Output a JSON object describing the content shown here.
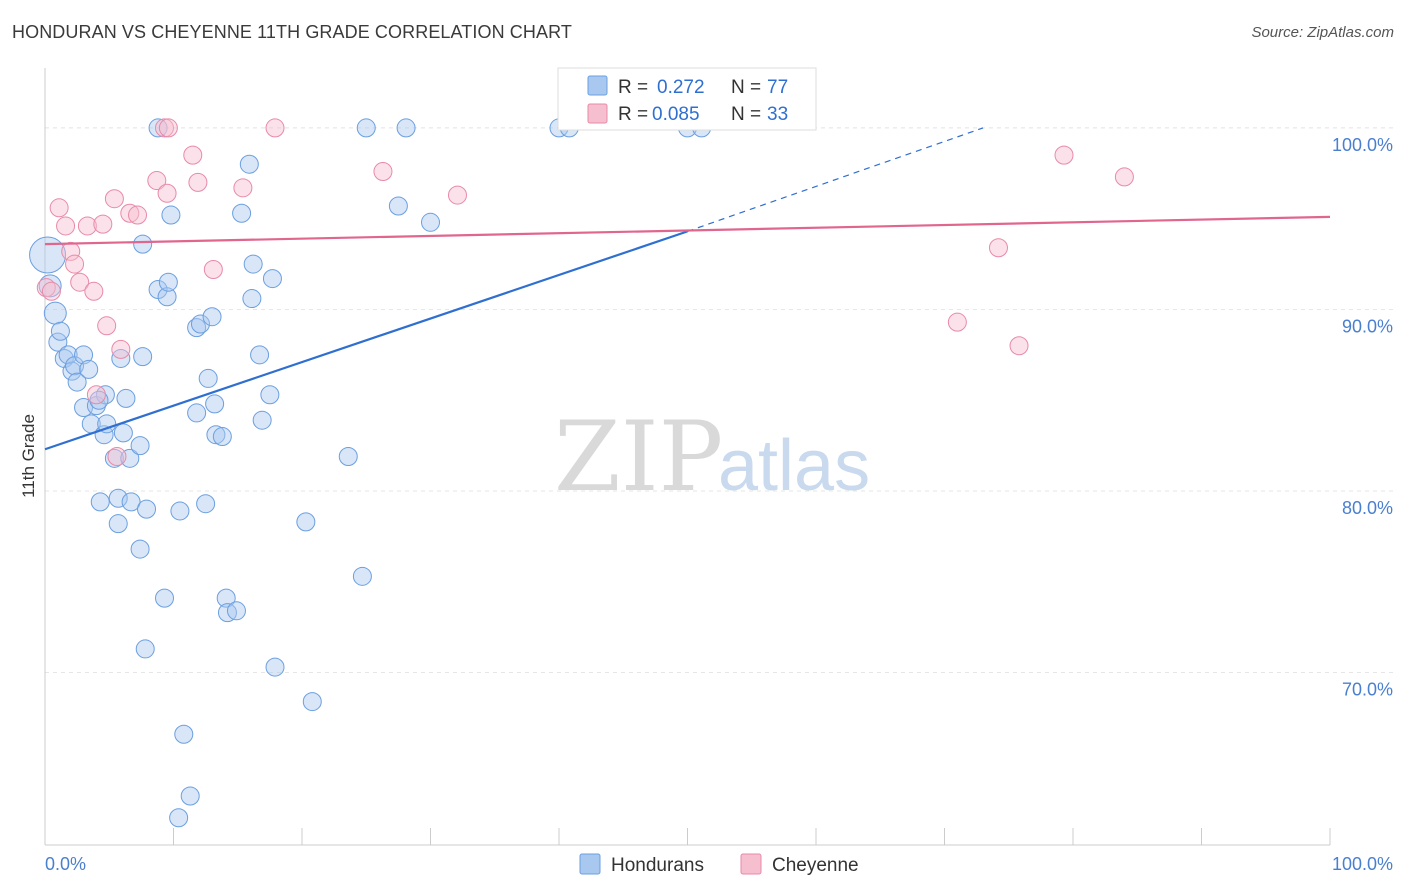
{
  "header": {
    "title": "HONDURAN VS CHEYENNE 11TH GRADE CORRELATION CHART",
    "source": "Source: ZipAtlas.com"
  },
  "watermark": {
    "zip": "ZIP",
    "atlas": "atlas"
  },
  "legend_box": {
    "rows": [
      {
        "r_label": "R =",
        "r_value": "0.272",
        "n_label": "N =",
        "n_value": "77",
        "color": "#a9c8f0",
        "stroke": "#6b9fe0"
      },
      {
        "r_label": "R =",
        "r_value": "0.085",
        "n_label": "N =",
        "n_value": "33",
        "color": "#f6bfd0",
        "stroke": "#e88aa8"
      }
    ]
  },
  "bottom_legend": [
    {
      "label": "Hondurans",
      "color": "#a9c8f0",
      "stroke": "#6b9fe0"
    },
    {
      "label": "Cheyenne",
      "color": "#f6bfd0",
      "stroke": "#e88aa8"
    }
  ],
  "chart_data": {
    "type": "scatter",
    "title": "HONDURAN VS CHEYENNE 11TH GRADE CORRELATION CHART",
    "xlabel": "",
    "ylabel": "11th Grade",
    "xlim": [
      0,
      100
    ],
    "ylim": [
      60.5,
      103.3
    ],
    "x_tick_labels": [
      "0.0%",
      "100.0%"
    ],
    "y_ticks": [
      70,
      80,
      90,
      100
    ],
    "y_tick_labels": [
      "70.0%",
      "80.0%",
      "90.0%",
      "100.0%"
    ],
    "grid": true,
    "series": [
      {
        "name": "Hondurans",
        "color": "#6b9fe0",
        "fill": "#a9c8f0",
        "r": 0.272,
        "n": 77,
        "trend": {
          "x0": 0,
          "y0": 82.3,
          "x1": 50,
          "y1": 94.3,
          "dashed_to_x": 73,
          "dashed_to_y": 100.0
        },
        "points": [
          [
            0.2,
            93.0
          ],
          [
            0.4,
            91.3
          ],
          [
            0.8,
            89.8
          ],
          [
            1.0,
            88.2
          ],
          [
            1.2,
            88.8
          ],
          [
            1.5,
            87.3
          ],
          [
            1.8,
            87.5
          ],
          [
            2.1,
            86.6
          ],
          [
            2.3,
            86.9
          ],
          [
            2.5,
            86.0
          ],
          [
            3.0,
            87.5
          ],
          [
            3.4,
            86.7
          ],
          [
            3.0,
            84.6
          ],
          [
            4.0,
            84.7
          ],
          [
            3.6,
            83.7
          ],
          [
            4.7,
            85.3
          ],
          [
            4.2,
            85.0
          ],
          [
            4.6,
            83.1
          ],
          [
            4.8,
            83.7
          ],
          [
            5.4,
            81.8
          ],
          [
            6.1,
            83.2
          ],
          [
            6.6,
            81.8
          ],
          [
            6.3,
            85.1
          ],
          [
            5.9,
            87.3
          ],
          [
            7.4,
            82.5
          ],
          [
            7.6,
            87.4
          ],
          [
            8.8,
            91.1
          ],
          [
            9.5,
            90.7
          ],
          [
            9.6,
            91.5
          ],
          [
            8.8,
            100.0
          ],
          [
            9.8,
            95.2
          ],
          [
            7.6,
            93.6
          ],
          [
            4.3,
            79.4
          ],
          [
            5.7,
            79.6
          ],
          [
            5.7,
            78.2
          ],
          [
            6.7,
            79.4
          ],
          [
            7.9,
            79.0
          ],
          [
            10.5,
            78.9
          ],
          [
            12.5,
            79.3
          ],
          [
            7.4,
            76.8
          ],
          [
            9.3,
            74.1
          ],
          [
            7.8,
            71.3
          ],
          [
            10.8,
            66.6
          ],
          [
            11.3,
            63.2
          ],
          [
            10.4,
            62.0
          ],
          [
            11.8,
            89.0
          ],
          [
            12.1,
            89.2
          ],
          [
            13.0,
            89.6
          ],
          [
            12.7,
            86.2
          ],
          [
            11.8,
            84.3
          ],
          [
            13.2,
            84.8
          ],
          [
            13.3,
            83.1
          ],
          [
            13.8,
            83.0
          ],
          [
            14.1,
            74.1
          ],
          [
            14.2,
            73.3
          ],
          [
            14.9,
            73.4
          ],
          [
            15.3,
            95.3
          ],
          [
            15.9,
            98.0
          ],
          [
            16.2,
            92.5
          ],
          [
            16.1,
            90.6
          ],
          [
            16.7,
            87.5
          ],
          [
            16.9,
            83.9
          ],
          [
            17.5,
            85.3
          ],
          [
            17.7,
            91.7
          ],
          [
            17.9,
            70.3
          ],
          [
            20.3,
            78.3
          ],
          [
            20.8,
            68.4
          ],
          [
            23.6,
            81.9
          ],
          [
            24.7,
            75.3
          ],
          [
            25.0,
            100.0
          ],
          [
            27.5,
            95.7
          ],
          [
            28.1,
            100.0
          ],
          [
            30.0,
            94.8
          ],
          [
            40.0,
            100.0
          ],
          [
            40.8,
            100.0
          ],
          [
            50.0,
            100.0
          ],
          [
            51.1,
            100.0
          ]
        ]
      },
      {
        "name": "Cheyenne",
        "color": "#e88aa8",
        "fill": "#f6bfd0",
        "r": 0.085,
        "n": 33,
        "trend": {
          "x0": 0,
          "y0": 93.6,
          "x1": 100,
          "y1": 95.1
        },
        "points": [
          [
            0.1,
            91.2
          ],
          [
            0.5,
            91.0
          ],
          [
            1.1,
            95.6
          ],
          [
            1.6,
            94.6
          ],
          [
            2.0,
            93.2
          ],
          [
            2.3,
            92.5
          ],
          [
            2.7,
            91.5
          ],
          [
            3.3,
            94.6
          ],
          [
            3.8,
            91.0
          ],
          [
            4.5,
            94.7
          ],
          [
            4.8,
            89.1
          ],
          [
            5.4,
            96.1
          ],
          [
            5.9,
            87.8
          ],
          [
            6.6,
            95.3
          ],
          [
            7.2,
            95.2
          ],
          [
            8.7,
            97.1
          ],
          [
            9.3,
            100.0
          ],
          [
            9.6,
            100.0
          ],
          [
            9.5,
            96.4
          ],
          [
            11.5,
            98.5
          ],
          [
            11.9,
            97.0
          ],
          [
            13.1,
            92.2
          ],
          [
            15.4,
            96.7
          ],
          [
            17.9,
            100.0
          ],
          [
            26.3,
            97.6
          ],
          [
            32.1,
            96.3
          ],
          [
            4.0,
            85.3
          ],
          [
            5.6,
            81.9
          ],
          [
            71.0,
            89.3
          ],
          [
            74.2,
            93.4
          ],
          [
            75.8,
            88.0
          ],
          [
            79.3,
            98.5
          ],
          [
            84.0,
            97.3
          ]
        ]
      }
    ]
  }
}
